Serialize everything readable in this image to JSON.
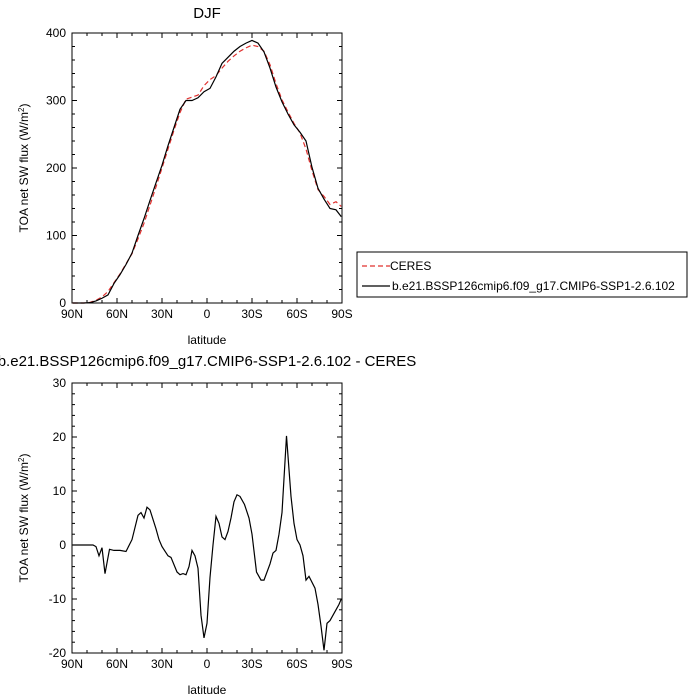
{
  "chart_data": [
    {
      "type": "line",
      "title": "DJF",
      "xlabel": "latitude",
      "ylabel_main": "TOA net SW flux (W/m",
      "ylabel_sup": "2",
      "ylabel_end": ")",
      "xlim": [
        90,
        -90
      ],
      "ylim": [
        0,
        400
      ],
      "x_ticks": [
        90,
        60,
        30,
        0,
        -30,
        -60,
        -90
      ],
      "x_tick_labels": [
        "90N",
        "60N",
        "30N",
        "0",
        "30S",
        "60S",
        "90S"
      ],
      "y_ticks": [
        0,
        100,
        200,
        300,
        400
      ],
      "y_tick_labels": [
        "0",
        "100",
        "200",
        "300",
        "400"
      ],
      "grid": false,
      "legend": {
        "placement": "right",
        "entries": [
          {
            "name": "CERES",
            "color": "#e0312f",
            "style": "dashed"
          },
          {
            "name": "b.e21.BSSP126cmip6.f09_g17.CMIP6-SSP1-2.6.102",
            "color": "#000000",
            "style": "solid"
          }
        ]
      },
      "series": [
        {
          "name": "CERES",
          "color": "#e0312f",
          "style": "dashed",
          "x": [
            89.5,
            86,
            82,
            78,
            74,
            70,
            66,
            62,
            58,
            54,
            50,
            46,
            42,
            38,
            34,
            30,
            26,
            22,
            18,
            14,
            10,
            6,
            2,
            -2,
            -6,
            -10,
            -14,
            -18,
            -22,
            -26,
            -30,
            -34,
            -38,
            -42,
            -46,
            -50,
            -54,
            -58,
            -62,
            -66,
            -70,
            -74,
            -78,
            -82,
            -86,
            -89.5
          ],
          "y": [
            0,
            0,
            0,
            1,
            4,
            9,
            17,
            30,
            43,
            58,
            73,
            95,
            118,
            145,
            172,
            200,
            228,
            256,
            282,
            302,
            305,
            308,
            322,
            331,
            337,
            348,
            358,
            366,
            373,
            378,
            382,
            380,
            373,
            353,
            325,
            301,
            283,
            266,
            252,
            228,
            196,
            168,
            158,
            146,
            150,
            143
          ]
        },
        {
          "name": "b.e21.BSSP126cmip6.f09_g17.CMIP6-SSP1-2.6.102",
          "color": "#000000",
          "style": "solid",
          "x": [
            89.5,
            86,
            82,
            78,
            74,
            70,
            66,
            62,
            58,
            54,
            50,
            46,
            42,
            38,
            34,
            30,
            26,
            22,
            18,
            14,
            10,
            6,
            2,
            -2,
            -6,
            -10,
            -14,
            -18,
            -22,
            -26,
            -30,
            -34,
            -38,
            -42,
            -46,
            -50,
            -54,
            -58,
            -62,
            -66,
            -70,
            -74,
            -78,
            -82,
            -86,
            -89.5
          ],
          "y": [
            0,
            0,
            0,
            0.5,
            3,
            7,
            12,
            29,
            42,
            57,
            74,
            100,
            125,
            152,
            178,
            204,
            233,
            260,
            287,
            300,
            300,
            304,
            313,
            318,
            335,
            355,
            364,
            373,
            380,
            385,
            389,
            385,
            372,
            348,
            320,
            298,
            280,
            264,
            253,
            240,
            201,
            170,
            154,
            140,
            138,
            128
          ]
        }
      ]
    },
    {
      "type": "line",
      "title": "b.e21.BSSP126cmip6.f09_g17.CMIP6-SSP1-2.6.102 - CERES",
      "xlabel": "latitude",
      "ylabel_main": "TOA net SW flux (W/m",
      "ylabel_sup": "2",
      "ylabel_end": ")",
      "xlim": [
        90,
        -90
      ],
      "ylim": [
        -20,
        30
      ],
      "x_ticks": [
        90,
        60,
        30,
        0,
        -30,
        -60,
        -90
      ],
      "x_tick_labels": [
        "90N",
        "60N",
        "30N",
        "0",
        "30S",
        "60S",
        "90S"
      ],
      "y_ticks": [
        -20,
        -10,
        0,
        10,
        20,
        30
      ],
      "y_tick_labels": [
        "-20",
        "-10",
        "0",
        "10",
        "20",
        "30"
      ],
      "grid": false,
      "series": [
        {
          "color": "#000000",
          "style": "solid",
          "x": [
            89.5,
            85,
            80,
            76,
            74,
            72,
            70,
            68,
            65,
            62,
            58,
            54,
            50,
            46,
            44,
            42,
            40,
            38,
            34,
            32,
            30,
            26,
            24,
            20,
            18,
            16,
            14,
            12,
            10,
            8,
            6,
            4,
            2,
            0,
            -2,
            -4,
            -6,
            -8,
            -10,
            -12,
            -14,
            -16,
            -18,
            -20,
            -22,
            -25,
            -28,
            -30,
            -33,
            -36,
            -38,
            -42,
            -44,
            -46,
            -48,
            -50,
            -53,
            -56,
            -58,
            -60,
            -62,
            -64,
            -66,
            -68,
            -72,
            -74,
            -76,
            -78,
            -80,
            -82,
            -84,
            -86,
            -88,
            -89.5
          ],
          "y": [
            0,
            0,
            0,
            0,
            -0.3,
            -2,
            -0.5,
            -5.3,
            -0.8,
            -1,
            -1,
            -1.2,
            1,
            5.5,
            6,
            5,
            7,
            6.5,
            3,
            1,
            -0.3,
            -2,
            -2.3,
            -5,
            -5.5,
            -5.3,
            -5.5,
            -4,
            -1,
            -2,
            -4.3,
            -13,
            -17.2,
            -14.5,
            -6,
            0,
            5.3,
            4,
            1.5,
            1,
            2.5,
            5,
            8,
            9.3,
            9,
            7.5,
            5,
            2,
            -5,
            -6.5,
            -6.5,
            -3.5,
            -1.5,
            -1,
            2,
            6,
            20.2,
            9,
            4,
            1,
            0,
            -2,
            -6.5,
            -5.8,
            -8,
            -11,
            -15,
            -19.5,
            -14.5,
            -14,
            -13,
            -12,
            -11,
            -10
          ]
        }
      ]
    }
  ]
}
